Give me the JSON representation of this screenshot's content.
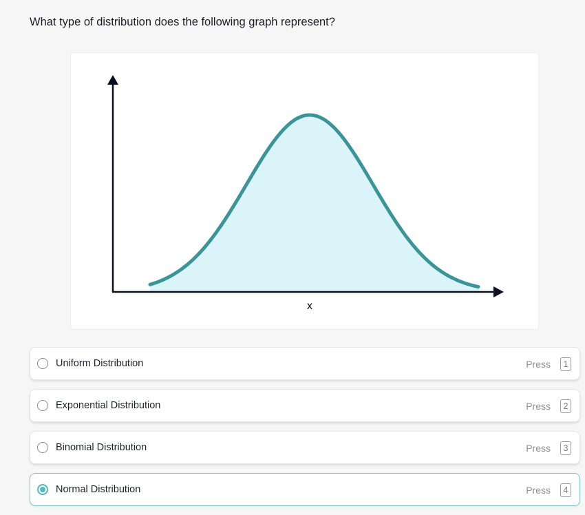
{
  "question": "What type of distribution does the following graph represent?",
  "figure": {
    "x_axis_label": "x",
    "colors": {
      "curve": "#3a9498",
      "fill": "#daf4f9",
      "axis": "#0b1020"
    }
  },
  "chart_data": {
    "type": "area",
    "title": "",
    "xlabel": "x",
    "ylabel": "",
    "shape": "bell curve (normal distribution)",
    "grid": false,
    "legend": "none"
  },
  "options": [
    {
      "label": "Uniform Distribution",
      "press_text": "Press",
      "key": "1",
      "selected": false
    },
    {
      "label": "Exponential Distribution",
      "press_text": "Press",
      "key": "2",
      "selected": false
    },
    {
      "label": "Binomial Distribution",
      "press_text": "Press",
      "key": "3",
      "selected": false
    },
    {
      "label": "Normal Distribution",
      "press_text": "Press",
      "key": "4",
      "selected": true
    }
  ],
  "colors": {
    "accent": "#52b8c4",
    "selected_border": "#7cc6cf"
  }
}
